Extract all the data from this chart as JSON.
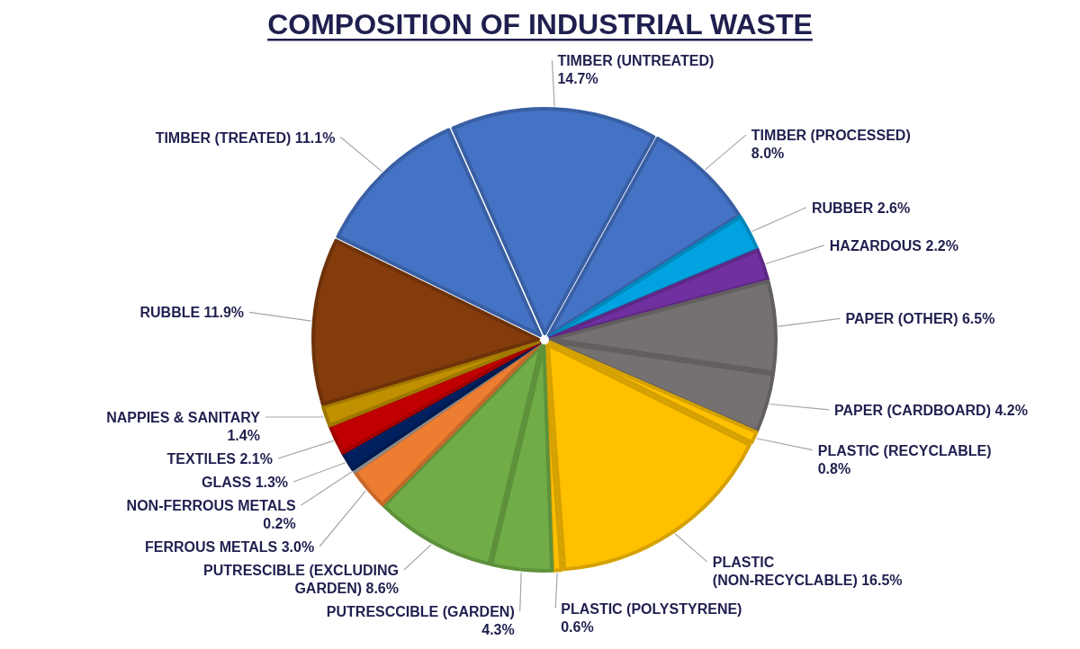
{
  "chart_data": {
    "type": "pie",
    "title": "COMPOSITION OF INDUSTRIAL WASTE",
    "categories": [
      "TIMBER (UNTREATED)",
      "TIMBER (PROCESSED)",
      "RUBBER",
      "HAZARDOUS",
      "PAPER (OTHER)",
      "PAPER (CARDBOARD)",
      "PLASTIC (RECYCLABLE)",
      "PLASTIC (NON-RECYCLABLE)",
      "PLASTIC (POLYSTYRENE)",
      "PUTRESCCIBLE (GARDEN)",
      "PUTRESCIBLE (EXCLUDING GARDEN)",
      "FERROUS METALS",
      "NON-FERROUS METALS",
      "GLASS",
      "TEXTILES",
      "NAPPIES & SANITARY",
      "RUBBLE",
      "TIMBER (TREATED)"
    ],
    "values": [
      14.7,
      8.0,
      2.6,
      2.2,
      6.5,
      4.2,
      0.8,
      16.5,
      0.6,
      4.3,
      8.6,
      3.0,
      0.2,
      1.3,
      2.1,
      1.4,
      11.9,
      11.1
    ],
    "value_labels": [
      "14.7%",
      "8.0%",
      "2.6%",
      "2.2%",
      "6.5%",
      "4.2%",
      "0.8%",
      "16.5%",
      "0.6%",
      "4.3%",
      "8.6%",
      "3.0%",
      "0.2%",
      "1.3%",
      "2.1%",
      "1.4%",
      "11.9%",
      "11.1%"
    ],
    "colors": [
      "#4472c4",
      "#4472c4",
      "#00a3e0",
      "#7030a0",
      "#767171",
      "#767171",
      "#ffc000",
      "#ffc000",
      "#ffc000",
      "#70ad47",
      "#70ad47",
      "#ed7d31",
      "#a5a5a5",
      "#002060",
      "#c00000",
      "#bf9000",
      "#843c0c",
      "#4472c4"
    ]
  }
}
